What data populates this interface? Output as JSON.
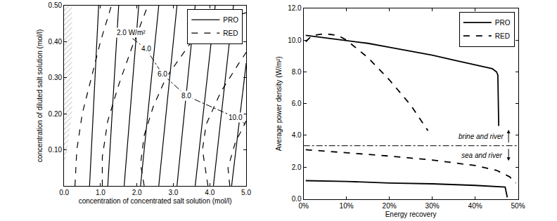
{
  "chart_data": [
    {
      "type": "line",
      "xlabel": "concentration of concentrated salt solution (mol/l)",
      "ylabel": "concentration of diluted salt solution (mol/l)",
      "xlim": [
        0,
        5
      ],
      "ylim": [
        0,
        0.5
      ],
      "xticks": [
        {
          "value": 0,
          "label": "0.0"
        },
        {
          "value": 1,
          "label": "1.0"
        },
        {
          "value": 2,
          "label": "2.0"
        },
        {
          "value": 3,
          "label": "3.0"
        },
        {
          "value": 4,
          "label": "4.0"
        },
        {
          "value": 5,
          "label": "5.0"
        }
      ],
      "yticks": [
        {
          "value": 0.1,
          "label": "0.10"
        },
        {
          "value": 0.2,
          "label": "0.20"
        },
        {
          "value": 0.3,
          "label": "0.30"
        },
        {
          "value": 0.4,
          "label": "0.40"
        },
        {
          "value": 0.5,
          "label": "0.50"
        }
      ],
      "grid": false,
      "legend": "upper right",
      "series": [
        {
          "name": "PRO",
          "color": "#000000",
          "line_style": "solid",
          "curves": [
            {
              "x": [
                0.7,
                0.95
              ],
              "values": [
                0,
                0.5
              ]
            },
            {
              "x": [
                1.2,
                1.5
              ],
              "values": [
                0,
                0.5
              ]
            },
            {
              "x": [
                1.65,
                2.05
              ],
              "values": [
                0,
                0.5
              ]
            },
            {
              "x": [
                2.1,
                2.6
              ],
              "values": [
                0,
                0.5
              ]
            },
            {
              "x": [
                2.6,
                3.1
              ],
              "values": [
                0,
                0.5
              ]
            },
            {
              "x": [
                3.1,
                3.6
              ],
              "values": [
                0,
                0.5
              ]
            },
            {
              "x": [
                3.6,
                4.15
              ],
              "values": [
                0,
                0.5
              ]
            },
            {
              "x": [
                4.1,
                4.65
              ],
              "values": [
                0,
                0.5
              ]
            },
            {
              "x": [
                4.6,
                5.0
              ],
              "values": [
                0,
                0.34
              ]
            }
          ]
        },
        {
          "name": "RED",
          "color": "#000000",
          "line_style": "dashed",
          "curves": [
            {
              "x": [
                0.3,
                0.35,
                0.5,
                0.75,
                1.0,
                1.3
              ],
              "values": [
                0,
                0.1,
                0.2,
                0.3,
                0.4,
                0.5
              ]
            },
            {
              "x": [
                1.05,
                1.05,
                1.2,
                1.5,
                1.85,
                2.3
              ],
              "values": [
                0,
                0.08,
                0.18,
                0.28,
                0.38,
                0.5
              ]
            },
            {
              "x": [
                2.2,
                2.1,
                2.2,
                2.45,
                2.8,
                3.5,
                4.3,
                5.0
              ],
              "values": [
                0,
                0.06,
                0.14,
                0.22,
                0.3,
                0.4,
                0.46,
                0.48
              ]
            },
            {
              "x": [
                3.95,
                3.8,
                3.9,
                4.3,
                4.8,
                5.0
              ],
              "values": [
                0,
                0.1,
                0.17,
                0.26,
                0.34,
                0.37
              ]
            },
            {
              "x": [
                4.55,
                4.5,
                4.7,
                5.0
              ],
              "values": [
                0,
                0.05,
                0.12,
                0.18
              ]
            }
          ]
        }
      ],
      "optimum_line": {
        "line_style": "dashdot",
        "color": "#000000",
        "x": [
          1.6,
          2.25,
          2.7,
          3.35,
          4.7,
          5.0
        ],
        "values": [
          0.43,
          0.38,
          0.31,
          0.25,
          0.19,
          0.17
        ]
      },
      "hatched_region": {
        "color": "#999999",
        "x": [
          0,
          0,
          0.22,
          0.22,
          0.05
        ],
        "values": [
          0.07,
          0.5,
          0.5,
          0.2,
          0.07
        ]
      },
      "annotations": [
        {
          "text": "2.0 W/m²",
          "x": 1.85,
          "y": 0.425
        },
        {
          "text": "4.0",
          "x": 2.25,
          "y": 0.38
        },
        {
          "text": "6.0",
          "x": 2.7,
          "y": 0.31
        },
        {
          "text": "8.0",
          "x": 3.35,
          "y": 0.25
        },
        {
          "text": "10.0",
          "x": 4.7,
          "y": 0.19
        }
      ]
    },
    {
      "type": "line",
      "xlabel": "Energy recovery",
      "ylabel": "Average power density (W/m²)",
      "xlim": [
        0,
        50
      ],
      "ylim": [
        0,
        12
      ],
      "xticks": [
        {
          "value": 0,
          "label": "0%"
        },
        {
          "value": 10,
          "label": "10%"
        },
        {
          "value": 20,
          "label": "20%"
        },
        {
          "value": 30,
          "label": "30%"
        },
        {
          "value": 40,
          "label": "40%"
        },
        {
          "value": 50,
          "label": "50%"
        }
      ],
      "yticks": [
        {
          "value": 0,
          "label": "0.0"
        },
        {
          "value": 2,
          "label": "2.0"
        },
        {
          "value": 4,
          "label": "4.0"
        },
        {
          "value": 6,
          "label": "6.0"
        },
        {
          "value": 8,
          "label": "8.0"
        },
        {
          "value": 10,
          "label": "10.0"
        },
        {
          "value": 12,
          "label": "12.0"
        }
      ],
      "grid": false,
      "legend": "upper right",
      "series": [
        {
          "name": "PRO",
          "color": "#000000",
          "line_style": "solid",
          "x": [
            0.5,
            5,
            10,
            15,
            20,
            25,
            30,
            35,
            40,
            44,
            45,
            45.3,
            45.5
          ],
          "values": [
            10.3,
            10.15,
            10.0,
            9.8,
            9.55,
            9.3,
            9.05,
            8.75,
            8.45,
            8.2,
            8.0,
            7.8,
            4.6
          ]
        },
        {
          "name": "RED",
          "color": "#000000",
          "line_style": "dashed",
          "x": [
            0.5,
            2,
            5,
            8,
            10,
            15,
            20,
            25,
            29
          ],
          "values": [
            9.9,
            10.3,
            10.4,
            10.3,
            10.0,
            8.9,
            7.5,
            5.9,
            4.3
          ]
        },
        {
          "name": "PRO",
          "color": "#000000",
          "line_style": "solid",
          "x": [
            0.5,
            10,
            20,
            30,
            40,
            47,
            47.5
          ],
          "values": [
            1.15,
            1.1,
            1.0,
            0.95,
            0.85,
            0.75,
            0.1
          ]
        },
        {
          "name": "RED",
          "color": "#000000",
          "line_style": "dashed",
          "x": [
            0.5,
            10,
            20,
            30,
            40,
            45,
            48,
            49.5
          ],
          "values": [
            3.1,
            2.9,
            2.7,
            2.45,
            2.1,
            1.8,
            1.4,
            1.0
          ]
        }
      ],
      "reference_line": {
        "y": 3.35,
        "line_style": "dashdot",
        "color": "#000000"
      },
      "annotations": [
        {
          "text": "brine and river",
          "x": 41.5,
          "y": 3.95,
          "arrow_x": 47.8,
          "arrow_to": 4.35
        },
        {
          "text": "sea and river",
          "x": 41.5,
          "y": 2.75,
          "arrow_x": 47.8,
          "arrow_to": 2.4
        }
      ]
    }
  ]
}
